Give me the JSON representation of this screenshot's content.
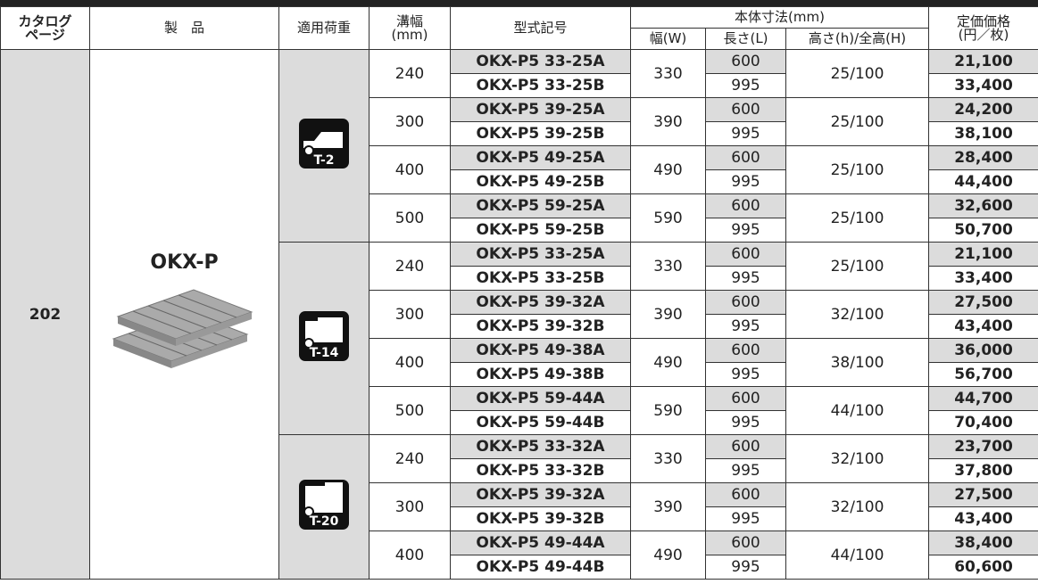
{
  "header": {
    "catalog_page": [
      "カタログ",
      "ページ"
    ],
    "product": "製　品",
    "load": "適用荷重",
    "groove_width": [
      "溝幅",
      "(mm)"
    ],
    "model": "型式記号",
    "body_size": "本体寸法(mm)",
    "w": "幅(W)",
    "l": "長さ(L)",
    "h": "高さ(h)/全高(H)",
    "price": [
      "定価価格",
      "(円／枚)"
    ]
  },
  "catalog_page": "202",
  "product_name": "OKX-P",
  "groups": [
    {
      "load": "T-2",
      "sizes": [
        {
          "width": "240",
          "w": "330",
          "h": "25/100",
          "rows": [
            {
              "model": "OKX-P5 33-25A",
              "l": "600",
              "price": "21,100"
            },
            {
              "model": "OKX-P5 33-25B",
              "l": "995",
              "price": "33,400"
            }
          ]
        },
        {
          "width": "300",
          "w": "390",
          "h": "25/100",
          "rows": [
            {
              "model": "OKX-P5 39-25A",
              "l": "600",
              "price": "24,200"
            },
            {
              "model": "OKX-P5 39-25B",
              "l": "995",
              "price": "38,100"
            }
          ]
        },
        {
          "width": "400",
          "w": "490",
          "h": "25/100",
          "rows": [
            {
              "model": "OKX-P5 49-25A",
              "l": "600",
              "price": "28,400"
            },
            {
              "model": "OKX-P5 49-25B",
              "l": "995",
              "price": "44,400"
            }
          ]
        },
        {
          "width": "500",
          "w": "590",
          "h": "25/100",
          "rows": [
            {
              "model": "OKX-P5 59-25A",
              "l": "600",
              "price": "32,600"
            },
            {
              "model": "OKX-P5 59-25B",
              "l": "995",
              "price": "50,700"
            }
          ]
        }
      ]
    },
    {
      "load": "T-14",
      "sizes": [
        {
          "width": "240",
          "w": "330",
          "h": "25/100",
          "rows": [
            {
              "model": "OKX-P5 33-25A",
              "l": "600",
              "price": "21,100"
            },
            {
              "model": "OKX-P5 33-25B",
              "l": "995",
              "price": "33,400"
            }
          ]
        },
        {
          "width": "300",
          "w": "390",
          "h": "32/100",
          "rows": [
            {
              "model": "OKX-P5 39-32A",
              "l": "600",
              "price": "27,500"
            },
            {
              "model": "OKX-P5 39-32B",
              "l": "995",
              "price": "43,400"
            }
          ]
        },
        {
          "width": "400",
          "w": "490",
          "h": "38/100",
          "rows": [
            {
              "model": "OKX-P5 49-38A",
              "l": "600",
              "price": "36,000"
            },
            {
              "model": "OKX-P5 49-38B",
              "l": "995",
              "price": "56,700"
            }
          ]
        },
        {
          "width": "500",
          "w": "590",
          "h": "44/100",
          "rows": [
            {
              "model": "OKX-P5 59-44A",
              "l": "600",
              "price": "44,700"
            },
            {
              "model": "OKX-P5 59-44B",
              "l": "995",
              "price": "70,400"
            }
          ]
        }
      ]
    },
    {
      "load": "T-20",
      "sizes": [
        {
          "width": "240",
          "w": "330",
          "h": "32/100",
          "rows": [
            {
              "model": "OKX-P5 33-32A",
              "l": "600",
              "price": "23,700"
            },
            {
              "model": "OKX-P5 33-32B",
              "l": "995",
              "price": "37,800"
            }
          ]
        },
        {
          "width": "300",
          "w": "390",
          "h": "32/100",
          "rows": [
            {
              "model": "OKX-P5 39-32A",
              "l": "600",
              "price": "27,500"
            },
            {
              "model": "OKX-P5 39-32B",
              "l": "995",
              "price": "43,400"
            }
          ]
        },
        {
          "width": "400",
          "w": "490",
          "h": "44/100",
          "rows": [
            {
              "model": "OKX-P5 49-44A",
              "l": "600",
              "price": "38,400"
            },
            {
              "model": "OKX-P5 49-44B",
              "l": "995",
              "price": "60,600"
            }
          ]
        }
      ]
    }
  ]
}
